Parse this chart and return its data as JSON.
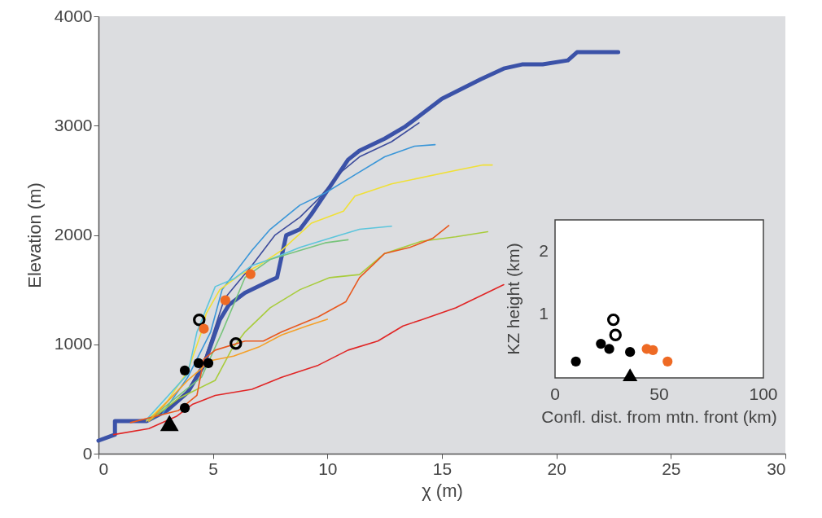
{
  "chart_data": [
    {
      "type": "line",
      "xlabel": "χ (m)",
      "ylabel": "Elevation (m)",
      "xlim": [
        0,
        30
      ],
      "ylim": [
        0,
        4000
      ],
      "xticks": [
        0,
        5,
        10,
        15,
        20,
        25,
        30
      ],
      "yticks": [
        0,
        1000,
        2000,
        3000,
        4000
      ],
      "grid": false,
      "series": [
        {
          "color": "#3b52a8",
          "x": [
            0,
            0.72,
            0.72,
            2.1,
            3.0,
            3.9,
            4.6,
            5.3,
            5.7,
            6.4,
            7.5,
            7.8,
            8.2,
            8.8,
            9.3,
            10.1,
            10.9,
            11.4,
            12.5,
            13.4,
            14.1,
            15.0,
            16.7,
            17.7,
            18.5,
            19.4,
            20.5,
            20.9,
            22.7
          ],
          "values": [
            119,
            174,
            298,
            298,
            395,
            561,
            809,
            1224,
            1362,
            1472,
            1583,
            1611,
            1997,
            2052,
            2190,
            2439,
            2688,
            2771,
            2881,
            2992,
            3102,
            3246,
            3425,
            3522,
            3560,
            3560,
            3597,
            3672,
            3672
          ]
        },
        {
          "color": "#3d4c9c",
          "x": [
            2.1,
            3.0,
            3.9,
            4.6,
            5.5,
            6.7,
            7.7,
            8.8,
            9.6,
            10.6,
            11.4,
            12.8,
            14.0
          ],
          "values": [
            298,
            400,
            580,
            840,
            1417,
            1721,
            1997,
            2163,
            2329,
            2577,
            2715,
            2853,
            3025
          ]
        },
        {
          "color": "#3a96d8",
          "x": [
            2.8,
            3.9,
            4.9,
            5.4,
            6.7,
            7.5,
            8.8,
            9.9,
            11.2,
            12.5,
            13.8,
            14.7
          ],
          "values": [
            367,
            699,
            1113,
            1500,
            1859,
            2052,
            2273,
            2384,
            2550,
            2715,
            2812,
            2826
          ]
        },
        {
          "color": "#f0e036",
          "x": [
            2.1,
            3.0,
            3.9,
            4.5,
            4.7,
            5.3,
            6.2,
            7.0,
            8.0,
            9.3,
            10.7,
            11.2,
            12.8,
            15.6,
            16.8,
            17.2
          ],
          "values": [
            298,
            478,
            754,
            1113,
            1279,
            1500,
            1638,
            1721,
            1859,
            2108,
            2218,
            2356,
            2467,
            2591,
            2640,
            2640
          ]
        },
        {
          "color": "#5cc5dc",
          "x": [
            2.1,
            3.9,
            4.3,
            5.1,
            5.9,
            6.7,
            7.5,
            8.8,
            10.1,
            11.4,
            12.8
          ],
          "values": [
            312,
            727,
            1113,
            1528,
            1597,
            1721,
            1776,
            1886,
            1970,
            2052,
            2080
          ]
        },
        {
          "color": "#78c47c",
          "x": [
            2.2,
            4.5,
            5.4,
            6.4,
            7.5,
            8.8,
            9.9,
            10.9
          ],
          "values": [
            312,
            699,
            1113,
            1611,
            1776,
            1859,
            1928,
            1956
          ]
        },
        {
          "color": "#a8cc3c",
          "x": [
            2.2,
            3.5,
            5.1,
            5.8,
            6.4,
            7.5,
            8.8,
            10.1,
            11.4,
            12.5,
            14.1,
            15.6,
            17.0
          ],
          "values": [
            298,
            505,
            671,
            947,
            1113,
            1334,
            1500,
            1610,
            1638,
            1831,
            1942,
            1983,
            2030
          ]
        },
        {
          "color": "#e8581e",
          "x": [
            1.4,
            3.5,
            4.3,
            4.6,
            5.1,
            6.4,
            7.2,
            8.0,
            9.6,
            10.8,
            11.4,
            12.1,
            12.5,
            13.6,
            14.6,
            15.3
          ],
          "values": [
            284,
            395,
            533,
            865,
            947,
            1030,
            1030,
            1113,
            1251,
            1389,
            1610,
            1749,
            1831,
            1886,
            1970,
            2086
          ]
        },
        {
          "color": "#f5a028",
          "x": [
            2.2,
            3.9,
            4.9,
            5.9,
            7.0,
            8.0,
            9.1,
            10.0
          ],
          "values": [
            298,
            671,
            851,
            892,
            975,
            1086,
            1168,
            1229
          ]
        },
        {
          "color": "#e02525",
          "x": [
            0.66,
            2.2,
            3.4,
            4.1,
            5.1,
            6.7,
            8.0,
            9.6,
            10.9,
            12.2,
            13.3,
            14.1,
            15.6,
            17.7
          ],
          "values": [
            174,
            229,
            340,
            450,
            533,
            588,
            699,
            809,
            947,
            1030,
            1168,
            1224,
            1334,
            1545
          ]
        },
        {
          "type": "scatter",
          "marker": "circle",
          "color": "#000000",
          "x": [
            3.77,
            4.37,
            4.8,
            3.77
          ],
          "values": [
            761,
            828,
            828,
            418
          ]
        },
        {
          "type": "scatter",
          "marker": "circle",
          "color": "#000000",
          "x": [
            4.4,
            6.0
          ],
          "values": [
            1224,
            1007
          ]
        },
        {
          "type": "scatter",
          "marker": "circle",
          "color": "#ee6a24",
          "x": [
            4.6,
            5.54,
            6.64
          ],
          "values": [
            1142,
            1403,
            1642
          ]
        },
        {
          "type": "scatter",
          "marker": "triangle",
          "color": "#000000",
          "x": [
            3.1
          ],
          "values": [
            280
          ]
        }
      ]
    },
    {
      "type": "scatter",
      "xlabel": "Confl. dist. from mtn. front (km)",
      "ylabel": "KZ height (km)",
      "xlim": [
        0,
        100
      ],
      "ylim": [
        0,
        2.5
      ],
      "xticks": [
        0,
        50,
        100
      ],
      "yticks": [
        1,
        2
      ],
      "grid": false,
      "series": [
        {
          "marker": "circle",
          "color": "#000000",
          "x": [
            10,
            22,
            26,
            36
          ],
          "values": [
            0.26,
            0.54,
            0.46,
            0.41
          ]
        },
        {
          "marker": "circle",
          "color": "#000000",
          "x": [
            28,
            29
          ],
          "values": [
            0.92,
            0.68
          ]
        },
        {
          "marker": "circle",
          "color": "#ee6a24",
          "x": [
            44,
            47,
            54
          ],
          "values": [
            0.46,
            0.44,
            0.26
          ]
        },
        {
          "marker": "triangle",
          "color": "#000000",
          "x": [
            36
          ],
          "values": [
            0.05
          ]
        }
      ]
    }
  ]
}
